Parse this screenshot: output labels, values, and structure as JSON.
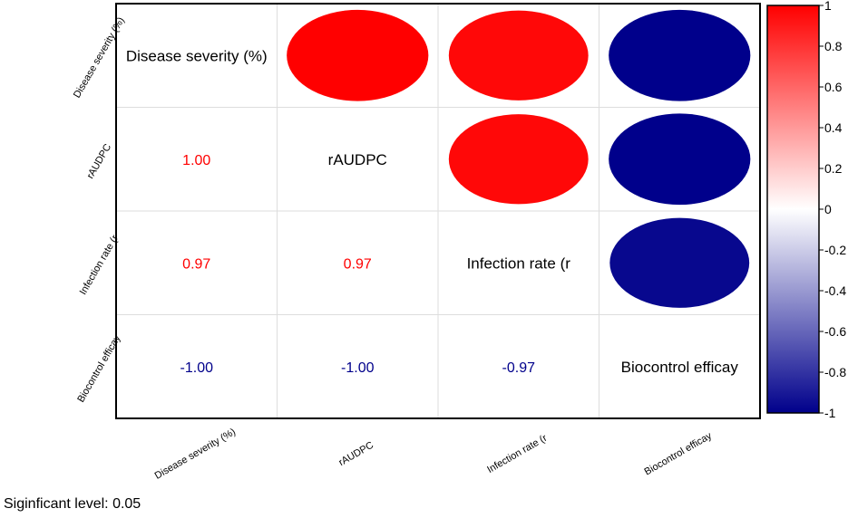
{
  "chart_data": {
    "type": "heatmap",
    "subtype": "correlation-matrix",
    "variables": [
      "Disease severity (%)",
      "rAUDPC",
      "Infection rate (r",
      "Biocontrol efficay"
    ],
    "row_labels": [
      "Disease severity (%)",
      "rAUDPC",
      "Infection rate (r",
      "Biocontrol efficay"
    ],
    "column_labels": [
      "Disease severity (%)",
      "rAUDPC",
      "Infection rate (r",
      "Biocontrol efficay"
    ],
    "diagonal_labels": [
      "Disease severity (%)",
      "rAUDPC",
      "Infection rate (r",
      "Biocontrol efficay"
    ],
    "lower_triangle": [
      {
        "row": 1,
        "col": 0,
        "text": "1.00",
        "value": 1.0
      },
      {
        "row": 2,
        "col": 0,
        "text": "0.97",
        "value": 0.97
      },
      {
        "row": 2,
        "col": 1,
        "text": "0.97",
        "value": 0.97
      },
      {
        "row": 3,
        "col": 0,
        "text": "-1.00",
        "value": -1.0
      },
      {
        "row": 3,
        "col": 1,
        "text": "-1.00",
        "value": -1.0
      },
      {
        "row": 3,
        "col": 2,
        "text": "-0.97",
        "value": -0.97
      }
    ],
    "upper_triangle": [
      {
        "row": 0,
        "col": 1,
        "value": 1.0
      },
      {
        "row": 0,
        "col": 2,
        "value": 0.97
      },
      {
        "row": 0,
        "col": 3,
        "value": -1.0
      },
      {
        "row": 1,
        "col": 2,
        "value": 0.97
      },
      {
        "row": 1,
        "col": 3,
        "value": -1.0
      },
      {
        "row": 2,
        "col": 3,
        "value": -0.97
      }
    ],
    "colorbar": {
      "range": [
        -1,
        1
      ],
      "ticks": [
        "1",
        "0.8",
        "0.6",
        "0.4",
        "0.2",
        "0",
        "-0.2",
        "-0.4",
        "-0.6",
        "-0.8",
        "-1"
      ],
      "tick_values": [
        1,
        0.8,
        0.6,
        0.4,
        0.2,
        0,
        -0.2,
        -0.4,
        -0.6,
        -0.8,
        -1
      ],
      "color_high": "#ff0000",
      "color_mid": "#ffffff",
      "color_low": "#00008b"
    },
    "positive_text_color": "#ff0000",
    "negative_text_color": "#00008b"
  },
  "footer": {
    "significance_text": "Siginficant level: 0.05"
  }
}
